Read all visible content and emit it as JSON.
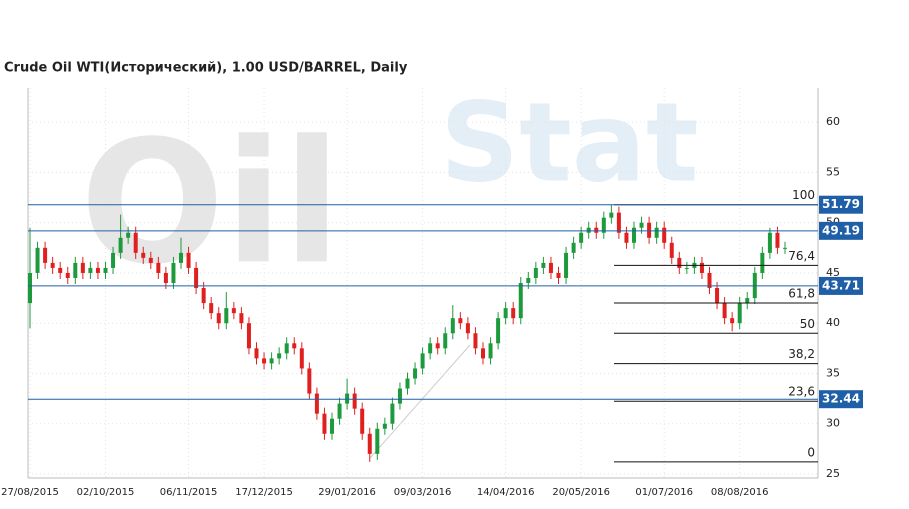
{
  "chart_data": {
    "type": "candlestick",
    "title": "Crude Oil WTI(Исторический), 1.00 USD/BARREL, Daily",
    "watermark": [
      "Oil",
      "Stat"
    ],
    "up_color": "#1d9a3c",
    "down_color": "#e0201e",
    "level_color": "#1f5fa8",
    "fib_color": "#111111",
    "categories": [
      "27/08/2015",
      null,
      null,
      null,
      null,
      null,
      null,
      null,
      null,
      null,
      "02/10/2015",
      null,
      null,
      null,
      null,
      null,
      null,
      null,
      null,
      null,
      null,
      "06/11/2015",
      null,
      null,
      null,
      null,
      null,
      null,
      null,
      null,
      null,
      "17/12/2015",
      null,
      null,
      null,
      null,
      null,
      null,
      null,
      null,
      null,
      null,
      "29/01/2016",
      null,
      null,
      null,
      null,
      null,
      null,
      null,
      null,
      null,
      "09/03/2016",
      null,
      null,
      null,
      null,
      null,
      null,
      null,
      null,
      null,
      null,
      "14/04/2016",
      null,
      null,
      null,
      null,
      null,
      null,
      null,
      null,
      null,
      "20/05/2016",
      null,
      null,
      null,
      null,
      null,
      null,
      null,
      null,
      null,
      null,
      "01/07/2016",
      null,
      null,
      null,
      null,
      null,
      null,
      null,
      null,
      null,
      "08/08/2016",
      null,
      null,
      null,
      null,
      null,
      null
    ],
    "open": [
      42,
      45,
      47.5,
      46,
      45.5,
      45,
      44.5,
      46,
      45,
      45.5,
      45,
      45.5,
      47,
      48.5,
      49,
      47,
      46.5,
      46,
      45,
      44,
      46,
      47,
      45.5,
      43.5,
      42,
      41,
      40,
      41.5,
      41,
      40,
      37.5,
      36.5,
      36,
      36.5,
      37,
      38,
      37.5,
      35.5,
      33,
      31,
      29,
      30.5,
      32,
      33,
      31.5,
      29,
      27,
      29.5,
      30,
      32,
      33.5,
      34.5,
      35.5,
      37,
      38,
      37.5,
      39,
      40.5,
      40,
      39,
      37.5,
      36.5,
      38,
      40.5,
      41.5,
      40.5,
      44,
      44.5,
      45.5,
      46,
      45,
      44.5,
      47,
      48,
      49,
      49.5,
      49,
      50.5,
      51,
      49,
      48,
      49.5,
      50,
      48.5,
      49.5,
      48,
      46.5,
      45.5,
      45.5,
      46,
      45,
      43.5,
      42,
      40.5,
      40,
      42,
      42.5,
      45,
      47,
      49,
      47.5
    ],
    "high": [
      49.5,
      48.1,
      48.1,
      46.6,
      46.1,
      45.6,
      46.6,
      46.6,
      46.1,
      46.1,
      46.1,
      47.6,
      50.8,
      49.6,
      49.6,
      47.6,
      47.1,
      46.6,
      45.6,
      46.6,
      48.5,
      47.6,
      46.1,
      44.1,
      42.6,
      41.6,
      43.1,
      42.1,
      41.6,
      40.6,
      38.1,
      37.1,
      37.1,
      37.6,
      38.6,
      38.6,
      38.1,
      36.1,
      33.6,
      31.6,
      31.1,
      32.6,
      34.5,
      33.6,
      32.1,
      29.6,
      30.1,
      30.6,
      32.6,
      34.1,
      35.1,
      36.1,
      37.6,
      38.6,
      38.6,
      39.6,
      41.8,
      41.1,
      40.6,
      39.6,
      38.1,
      38.6,
      41.1,
      42.1,
      42.1,
      44.6,
      45.1,
      46.1,
      46.6,
      46.6,
      45.6,
      47.6,
      48.6,
      49.6,
      50.1,
      50.1,
      51.1,
      51.79,
      51.6,
      49.6,
      50.1,
      50.6,
      50.6,
      50.1,
      50.1,
      48.6,
      47.1,
      46.1,
      46.6,
      46.6,
      45.6,
      44.1,
      42.6,
      41.1,
      42.6,
      43.1,
      45.6,
      47.6,
      49.5,
      49.6,
      48.1
    ],
    "low": [
      39.5,
      44.4,
      45.4,
      44.9,
      44.4,
      43.9,
      43.9,
      44.4,
      44.4,
      44.4,
      44.4,
      44.9,
      46.4,
      47.9,
      46.4,
      45.9,
      45.4,
      44.4,
      43.4,
      43.4,
      45.4,
      44.9,
      42.9,
      41.4,
      40.4,
      39.4,
      39.4,
      40.4,
      39.4,
      36.9,
      35.9,
      35.4,
      35.4,
      35.9,
      36.4,
      36.9,
      34.9,
      32.4,
      30.4,
      28.4,
      28.4,
      29.9,
      31.4,
      30.9,
      28.4,
      26.2,
      26.4,
      28.9,
      29.4,
      31.4,
      32.9,
      33.9,
      34.9,
      36.4,
      36.9,
      36.9,
      38.4,
      39.4,
      38.4,
      36.9,
      35.9,
      35.9,
      37.4,
      39.9,
      39.9,
      39.9,
      43.4,
      43.9,
      44.9,
      44.4,
      43.9,
      43.9,
      46.4,
      47.4,
      48.4,
      48.4,
      48.4,
      49.9,
      48.4,
      47.4,
      47.4,
      48.9,
      47.9,
      47.9,
      47.4,
      45.9,
      44.9,
      44.9,
      44.9,
      44.4,
      42.9,
      41.4,
      39.9,
      39.2,
      39.4,
      41.4,
      41.9,
      44.4,
      46.4,
      46.9,
      46.9
    ],
    "close": [
      45,
      47.5,
      46,
      45.5,
      45,
      44.5,
      46,
      45,
      45.5,
      45,
      45.5,
      47,
      48.5,
      49,
      47,
      46.5,
      46,
      45,
      44,
      46,
      47,
      45.5,
      43.5,
      42,
      41,
      40,
      41.5,
      41,
      40,
      37.5,
      36.5,
      36,
      36.5,
      37,
      38,
      37.5,
      35.5,
      33,
      31,
      29,
      30.5,
      32,
      33,
      31.5,
      29,
      27,
      29.5,
      30,
      32,
      33.5,
      34.5,
      35.5,
      37,
      38,
      37.5,
      39,
      40.5,
      40,
      39,
      37.5,
      36.5,
      38,
      40.5,
      41.5,
      40.5,
      44,
      44.5,
      45.5,
      46,
      45,
      44.5,
      47,
      48,
      49,
      49.5,
      49,
      50.5,
      51,
      49,
      48,
      49.5,
      50,
      48.5,
      49.5,
      48,
      46.5,
      45.5,
      45.5,
      46,
      45,
      43.5,
      42,
      40.5,
      40,
      42,
      42.5,
      45,
      47,
      49,
      47.5,
      47.5
    ],
    "levels": [
      51.79,
      49.19,
      43.71,
      32.44
    ],
    "fibonacci": [
      {
        "label": "100",
        "price": 51.79
      },
      {
        "label": "76,4",
        "price": 45.75
      },
      {
        "label": "61,8",
        "price": 42.01
      },
      {
        "label": "50",
        "price": 39.0
      },
      {
        "label": "38,2",
        "price": 35.98
      },
      {
        "label": "23,6",
        "price": 32.24
      },
      {
        "label": "0",
        "price": 26.2
      }
    ],
    "ylim": [
      24.6,
      63.4
    ],
    "yticks": [
      25,
      30,
      35,
      40,
      45,
      50,
      55,
      60
    ],
    "grid": true
  }
}
